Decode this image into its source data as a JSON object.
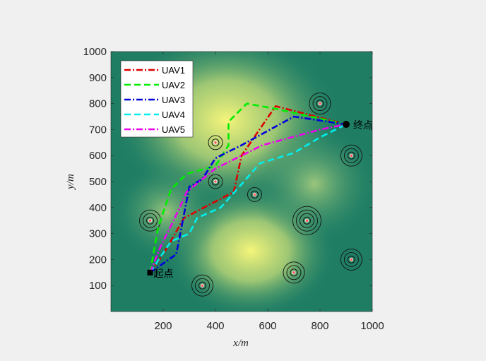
{
  "chart_data": {
    "type": "line",
    "title": "",
    "xlabel": "x/m",
    "ylabel": "y/m",
    "xlim": [
      0,
      1000
    ],
    "ylim": [
      0,
      1000
    ],
    "xticks": [
      200,
      400,
      600,
      800,
      1000
    ],
    "yticks": [
      100,
      200,
      300,
      400,
      500,
      600,
      700,
      800,
      900,
      1000
    ],
    "legend_position": "top-left",
    "start": {
      "label": "起点",
      "x": 150,
      "y": 150
    },
    "end": {
      "label": "终点",
      "x": 900,
      "y": 720
    },
    "threats": [
      {
        "x": 800,
        "y": 800,
        "rings": 3
      },
      {
        "x": 400,
        "y": 650,
        "rings": 2
      },
      {
        "x": 920,
        "y": 600,
        "rings": 3
      },
      {
        "x": 400,
        "y": 500,
        "rings": 2
      },
      {
        "x": 550,
        "y": 450,
        "rings": 2
      },
      {
        "x": 150,
        "y": 350,
        "rings": 3
      },
      {
        "x": 750,
        "y": 350,
        "rings": 4
      },
      {
        "x": 920,
        "y": 200,
        "rings": 3
      },
      {
        "x": 700,
        "y": 150,
        "rings": 3
      },
      {
        "x": 350,
        "y": 100,
        "rings": 3
      }
    ],
    "series": [
      {
        "name": "UAV1",
        "color": "#dd0000",
        "dash": "dashdot",
        "points": [
          [
            150,
            150
          ],
          [
            200,
            220
          ],
          [
            280,
            360
          ],
          [
            470,
            460
          ],
          [
            500,
            600
          ],
          [
            630,
            790
          ],
          [
            900,
            720
          ]
        ]
      },
      {
        "name": "UAV2",
        "color": "#00ee00",
        "dash": "dashed",
        "points": [
          [
            150,
            150
          ],
          [
            180,
            320
          ],
          [
            230,
            470
          ],
          [
            290,
            530
          ],
          [
            400,
            560
          ],
          [
            450,
            640
          ],
          [
            450,
            730
          ],
          [
            520,
            800
          ],
          [
            630,
            780
          ],
          [
            900,
            720
          ]
        ]
      },
      {
        "name": "UAV3",
        "color": "#0000dd",
        "dash": "dashdot",
        "points": [
          [
            150,
            150
          ],
          [
            250,
            220
          ],
          [
            300,
            480
          ],
          [
            350,
            510
          ],
          [
            400,
            590
          ],
          [
            500,
            640
          ],
          [
            700,
            750
          ],
          [
            900,
            720
          ]
        ]
      },
      {
        "name": "UAV4",
        "color": "#00eeee",
        "dash": "dashed",
        "points": [
          [
            150,
            150
          ],
          [
            230,
            270
          ],
          [
            300,
            300
          ],
          [
            330,
            360
          ],
          [
            420,
            400
          ],
          [
            500,
            490
          ],
          [
            570,
            570
          ],
          [
            700,
            610
          ],
          [
            800,
            670
          ],
          [
            900,
            720
          ]
        ]
      },
      {
        "name": "UAV5",
        "color": "#ee00ee",
        "dash": "dashdot",
        "points": [
          [
            150,
            150
          ],
          [
            190,
            250
          ],
          [
            240,
            350
          ],
          [
            290,
            460
          ],
          [
            400,
            550
          ],
          [
            580,
            640
          ],
          [
            800,
            700
          ],
          [
            900,
            720
          ]
        ]
      }
    ]
  }
}
